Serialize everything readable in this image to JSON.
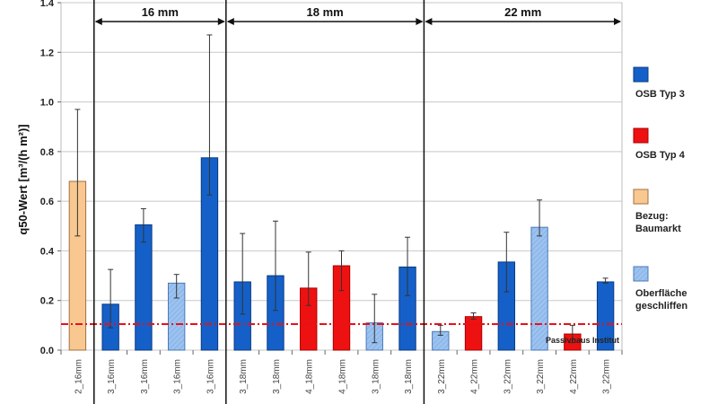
{
  "chart_data": {
    "type": "bar",
    "ylabel": "q50-Wert [m³/(h m²)]",
    "ylim": [
      0,
      1.4
    ],
    "yticks": [
      "0.0",
      "0.2",
      "0.4",
      "0.6",
      "0.8",
      "1.0",
      "1.2",
      "1.4"
    ],
    "grid": true,
    "legend_position": "right",
    "categories": [
      "2_16mm",
      "3_16mm",
      "3_16mm",
      "3_16mm",
      "3_16mm",
      "3_18mm",
      "3_18mm",
      "4_18mm",
      "4_18mm",
      "3_18mm",
      "3_18mm",
      "3_22mm",
      "4_22mm",
      "3_22mm",
      "3_22mm",
      "4_22mm",
      "3_22mm"
    ],
    "values": [
      0.68,
      0.185,
      0.505,
      0.27,
      0.775,
      0.275,
      0.3,
      0.25,
      0.34,
      0.11,
      0.335,
      0.075,
      0.135,
      0.355,
      0.495,
      0.065,
      0.275
    ],
    "error_low": [
      0.46,
      0.09,
      0.435,
      0.21,
      0.625,
      0.145,
      0.16,
      0.18,
      0.24,
      0.03,
      0.22,
      0.06,
      0.125,
      0.235,
      0.46,
      0.03,
      0.27
    ],
    "error_high": [
      0.97,
      0.325,
      0.57,
      0.305,
      1.27,
      0.47,
      0.52,
      0.395,
      0.4,
      0.225,
      0.455,
      0.1,
      0.15,
      0.475,
      0.605,
      0.1,
      0.29
    ],
    "bar_type": [
      "baumarkt",
      "typ3",
      "typ3",
      "geschliffen",
      "typ3",
      "typ3",
      "typ3",
      "typ4",
      "typ4",
      "geschliffen",
      "typ3",
      "geschliffen",
      "typ4",
      "typ3",
      "geschliffen",
      "typ4",
      "typ3"
    ],
    "groups": [
      {
        "label": "16 mm",
        "from": 1,
        "to": 4
      },
      {
        "label": "18 mm",
        "from": 5,
        "to": 10
      },
      {
        "label": "22 mm",
        "from": 11,
        "to": 16
      }
    ],
    "reference_line": {
      "value": 0.105,
      "label": "Passivhaus Institut",
      "color": "#e8101a"
    },
    "legend": [
      {
        "key": "typ3",
        "label": "OSB Typ 3",
        "color": "#1560c8"
      },
      {
        "key": "typ4",
        "label": "OSB Typ 4",
        "color": "#ee1111"
      },
      {
        "key": "baumarkt",
        "label": "Bezug: Baumarkt",
        "color": "#f8c890"
      },
      {
        "key": "geschliffen",
        "label": "Oberfläche geschliffen",
        "color": "#9cc2f0"
      }
    ]
  }
}
